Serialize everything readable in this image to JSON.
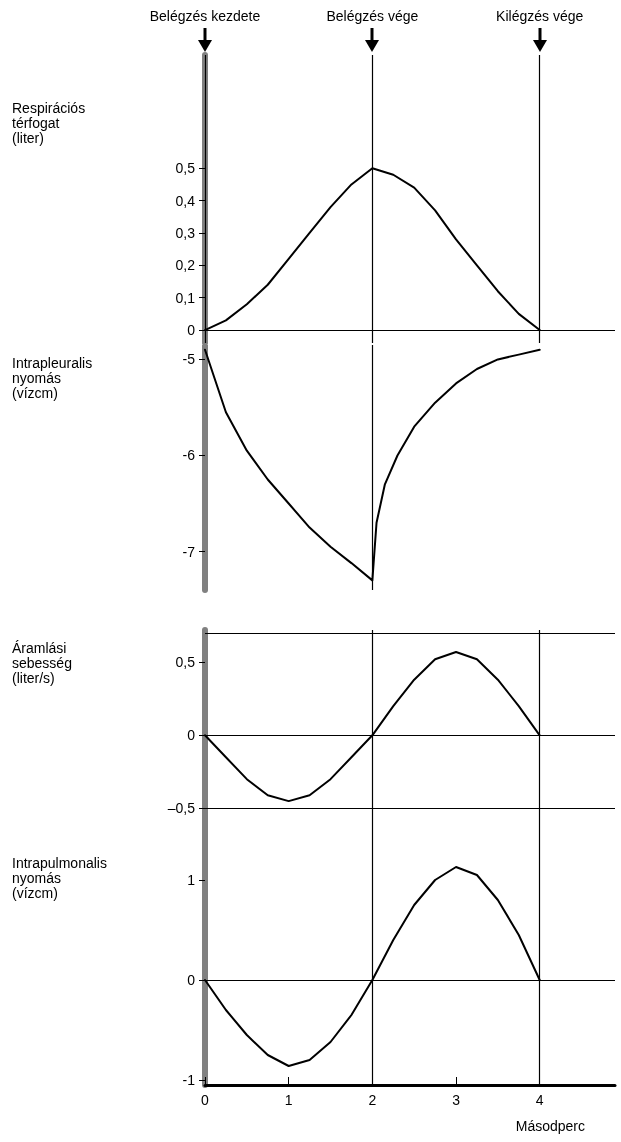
{
  "chart_data": [
    {
      "type": "line",
      "ylabel": "Respirációs\ntérfogat\n(liter)",
      "x": [
        0,
        0.25,
        0.5,
        0.75,
        1,
        1.25,
        1.5,
        1.75,
        2,
        2.25,
        2.5,
        2.75,
        3,
        3.25,
        3.5,
        3.75,
        4
      ],
      "series": [
        {
          "color": "#000000",
          "values": [
            0,
            0.03,
            0.08,
            0.14,
            0.22,
            0.3,
            0.38,
            0.45,
            0.5,
            0.48,
            0.44,
            0.37,
            0.28,
            0.2,
            0.12,
            0.05,
            0
          ]
        }
      ],
      "xlim": [
        0,
        4.9
      ],
      "xticks": [
        0,
        1,
        2,
        3,
        4
      ],
      "ylim": [
        -0.04,
        0.85
      ],
      "yticks": [
        0,
        {
          "value": 0.1,
          "label": "0,1"
        },
        {
          "value": 0.2,
          "label": "0,2"
        },
        {
          "value": 0.3,
          "label": "0,3"
        },
        {
          "value": 0.4,
          "label": "0,4"
        },
        {
          "value": 0.5,
          "label": "0,5"
        }
      ],
      "ref_lines": [
        {
          "axis": "x",
          "value": 0,
          "label": "Belégzés kezdete"
        },
        {
          "axis": "x",
          "value": 2,
          "label": "Belégzés vége"
        },
        {
          "axis": "x",
          "value": 4,
          "label": "Kilégzés vége"
        },
        {
          "axis": "y",
          "value": 0
        }
      ],
      "marker": "none",
      "tick_labels": "y"
    },
    {
      "type": "line",
      "ylabel": "Intrapleuralis\nnyomás\n(vízcm)",
      "x": [
        0,
        0.25,
        0.5,
        0.75,
        1,
        1.25,
        1.5,
        1.75,
        2,
        2.05,
        2.15,
        2.3,
        2.5,
        2.75,
        3,
        3.25,
        3.5,
        3.75,
        4
      ],
      "series": [
        {
          "color": "#000000",
          "values": [
            -4.9,
            -5.55,
            -5.95,
            -6.25,
            -6.5,
            -6.75,
            -6.95,
            -7.12,
            -7.3,
            -6.7,
            -6.3,
            -6.0,
            -5.7,
            -5.45,
            -5.25,
            -5.1,
            -5.0,
            -4.95,
            -4.9
          ]
        }
      ],
      "xlim": [
        0,
        4
      ],
      "xticks": [
        0,
        1,
        2,
        3,
        4
      ],
      "ylim": [
        -7.4,
        -4.85
      ],
      "yticks": [
        -7,
        -6,
        -5
      ],
      "ref_lines": [
        {
          "axis": "x",
          "value": 2
        }
      ],
      "marker": "none",
      "tick_labels": "y"
    },
    {
      "type": "line",
      "ylabel": "Áramlási\nsebesség\n(liter/s)",
      "x": [
        0,
        0.25,
        0.5,
        0.75,
        1,
        1.25,
        1.5,
        1.75,
        2,
        2.25,
        2.5,
        2.75,
        3,
        3.25,
        3.5,
        3.75,
        4
      ],
      "series": [
        {
          "color": "#000000",
          "values": [
            0,
            -0.15,
            -0.3,
            -0.41,
            -0.45,
            -0.41,
            -0.3,
            -0.15,
            0,
            0.2,
            0.38,
            0.52,
            0.57,
            0.52,
            0.38,
            0.2,
            0
          ]
        }
      ],
      "xlim": [
        0,
        4.9
      ],
      "xticks": [
        0,
        1,
        2,
        3,
        4
      ],
      "ylim": [
        -0.75,
        0.72
      ],
      "yticks": [
        {
          "value": -0.5,
          "label": "–0,5"
        },
        0,
        {
          "value": 0.5,
          "label": "0,5"
        }
      ],
      "ref_lines": [
        {
          "axis": "x",
          "value": 2
        },
        {
          "axis": "x",
          "value": 4
        },
        {
          "axis": "y",
          "value": 0
        },
        {
          "axis": "y",
          "value": 0.7
        },
        {
          "axis": "y",
          "value": -0.5
        }
      ],
      "marker": "none",
      "tick_labels": "y"
    },
    {
      "type": "line",
      "ylabel": "Intrapulmonalis\nnyomás\n(vízcm)",
      "xlabel": "Másodperc",
      "x": [
        0,
        0.25,
        0.5,
        0.75,
        1,
        1.25,
        1.5,
        1.75,
        2,
        2.25,
        2.5,
        2.75,
        3,
        3.25,
        3.5,
        3.75,
        4
      ],
      "series": [
        {
          "color": "#000000",
          "values": [
            0,
            -0.3,
            -0.55,
            -0.75,
            -0.86,
            -0.8,
            -0.62,
            -0.35,
            0,
            0.4,
            0.75,
            1.0,
            1.13,
            1.05,
            0.8,
            0.45,
            0
          ]
        }
      ],
      "xlim": [
        0,
        4.9
      ],
      "xticks": [
        0,
        1,
        2,
        3,
        4
      ],
      "ylim": [
        -1.05,
        1.35
      ],
      "yticks": [
        -1,
        0,
        1
      ],
      "ref_lines": [
        {
          "axis": "x",
          "value": 2
        },
        {
          "axis": "x",
          "value": 4
        },
        {
          "axis": "y",
          "value": 0
        }
      ],
      "marker": "none"
    }
  ]
}
